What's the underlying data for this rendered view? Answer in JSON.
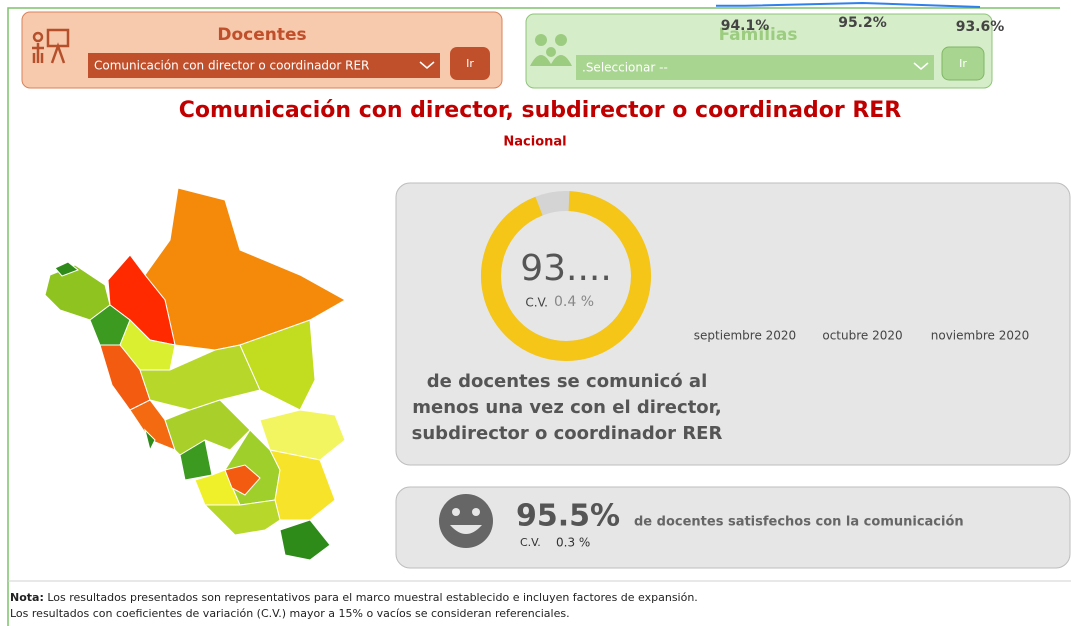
{
  "header": {
    "docentes": {
      "title": "Docentes",
      "selected": "Comunicación con director o coordinador RER",
      "button": "Ir"
    },
    "familias": {
      "title": "Familias",
      "selected": ".Seleccionar --",
      "button": "Ir"
    }
  },
  "title": "Comunicación con director, subdirector o coordinador RER",
  "subtitle": "Nacional",
  "chart_data": [
    {
      "type": "donut",
      "values": [
        93.5
      ],
      "value_labels": [
        "93...."
      ],
      "ylim": [
        0,
        100
      ],
      "color": "#f5c518",
      "track_color": "#d4d4d4",
      "cv_label": "C.V.",
      "cv_value": "0.4 %"
    },
    {
      "type": "line",
      "categories": [
        "septiembre 2020",
        "octubre 2020",
        "noviembre 2020"
      ],
      "values": [
        94.1,
        95.2,
        93.6
      ],
      "value_labels": [
        "94.1%",
        "95.2%",
        "93.6%"
      ],
      "ylim": [
        0,
        100
      ],
      "color": "#2f80ed"
    }
  ],
  "description": [
    "de docentes se comunicó al",
    "menos una vez con el director,",
    "subdirector o coordinador RER"
  ],
  "satisfaction": {
    "value": "95.5%",
    "text": "de docentes satisfechos con la comunicación",
    "cv_label": "C.V.",
    "cv_value": "0.3 %"
  },
  "note": {
    "label": "Nota:",
    "lines": [
      " Los resultados presentados son representativos para el marco muestral establecido e incluyen factores de expansión.",
      "Los resultados con coeficientes de variación (C.V.) mayor a 15% o vacíos se consideran referenciales."
    ]
  }
}
